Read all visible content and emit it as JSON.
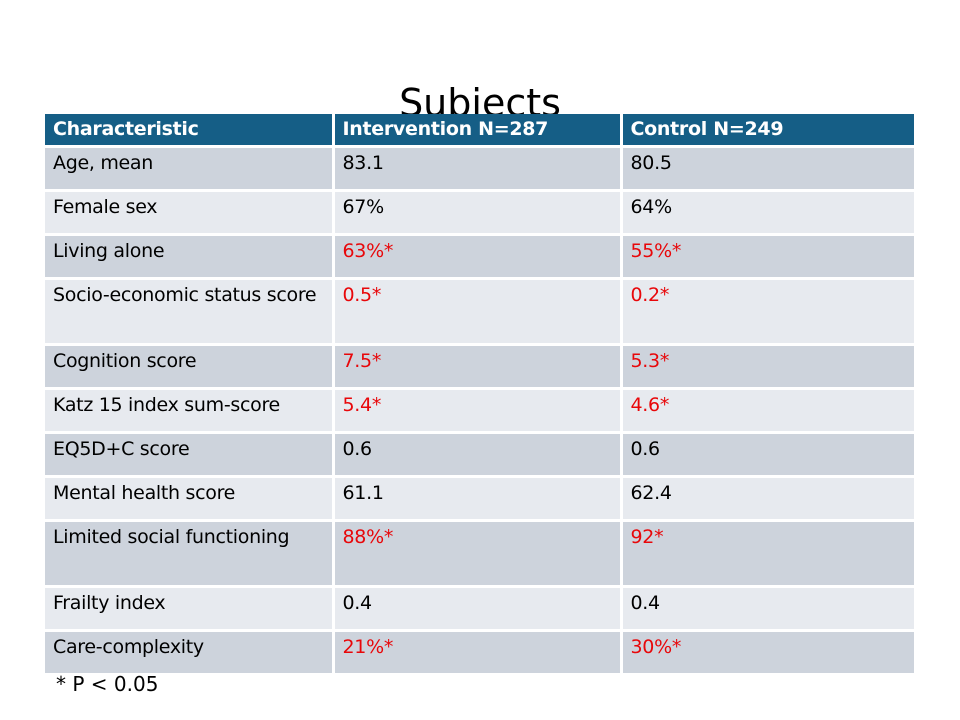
{
  "slide": {
    "title": "Subjects",
    "footnote": "* P < 0.05"
  },
  "colors": {
    "header_bg": "#155e86",
    "row_dark": "#cdd3dc",
    "row_light": "#e7eaef",
    "significant_text": "#e8070a"
  },
  "table": {
    "columns": [
      "Characteristic",
      "Intervention N=287",
      "Control N=249"
    ],
    "rows": [
      {
        "label": "Age, mean",
        "intervention": "83.1",
        "control": "80.5",
        "significant": false
      },
      {
        "label": "Female sex",
        "intervention": "67%",
        "control": "64%",
        "significant": false
      },
      {
        "label": "Living alone",
        "intervention": "63%*",
        "control": "55%*",
        "significant": true
      },
      {
        "label": "Socio-economic status score",
        "intervention": "0.5*",
        "control": "0.2*",
        "significant": true
      },
      {
        "label": "Cognition score",
        "intervention": "7.5*",
        "control": "5.3*",
        "significant": true
      },
      {
        "label": "Katz 15 index sum-score",
        "intervention": "5.4*",
        "control": "4.6*",
        "significant": true
      },
      {
        "label": "EQ5D+C score",
        "intervention": "0.6",
        "control": "0.6",
        "significant": false
      },
      {
        "label": "Mental health score",
        "intervention": "61.1",
        "control": "62.4",
        "significant": false
      },
      {
        "label": "Limited social functioning",
        "intervention": "88%*",
        "control": "92*",
        "significant": true
      },
      {
        "label": "Frailty index",
        "intervention": "0.4",
        "control": "0.4",
        "significant": false
      },
      {
        "label": "Care-complexity",
        "intervention": "21%*",
        "control": "30%*",
        "significant": true
      }
    ]
  }
}
